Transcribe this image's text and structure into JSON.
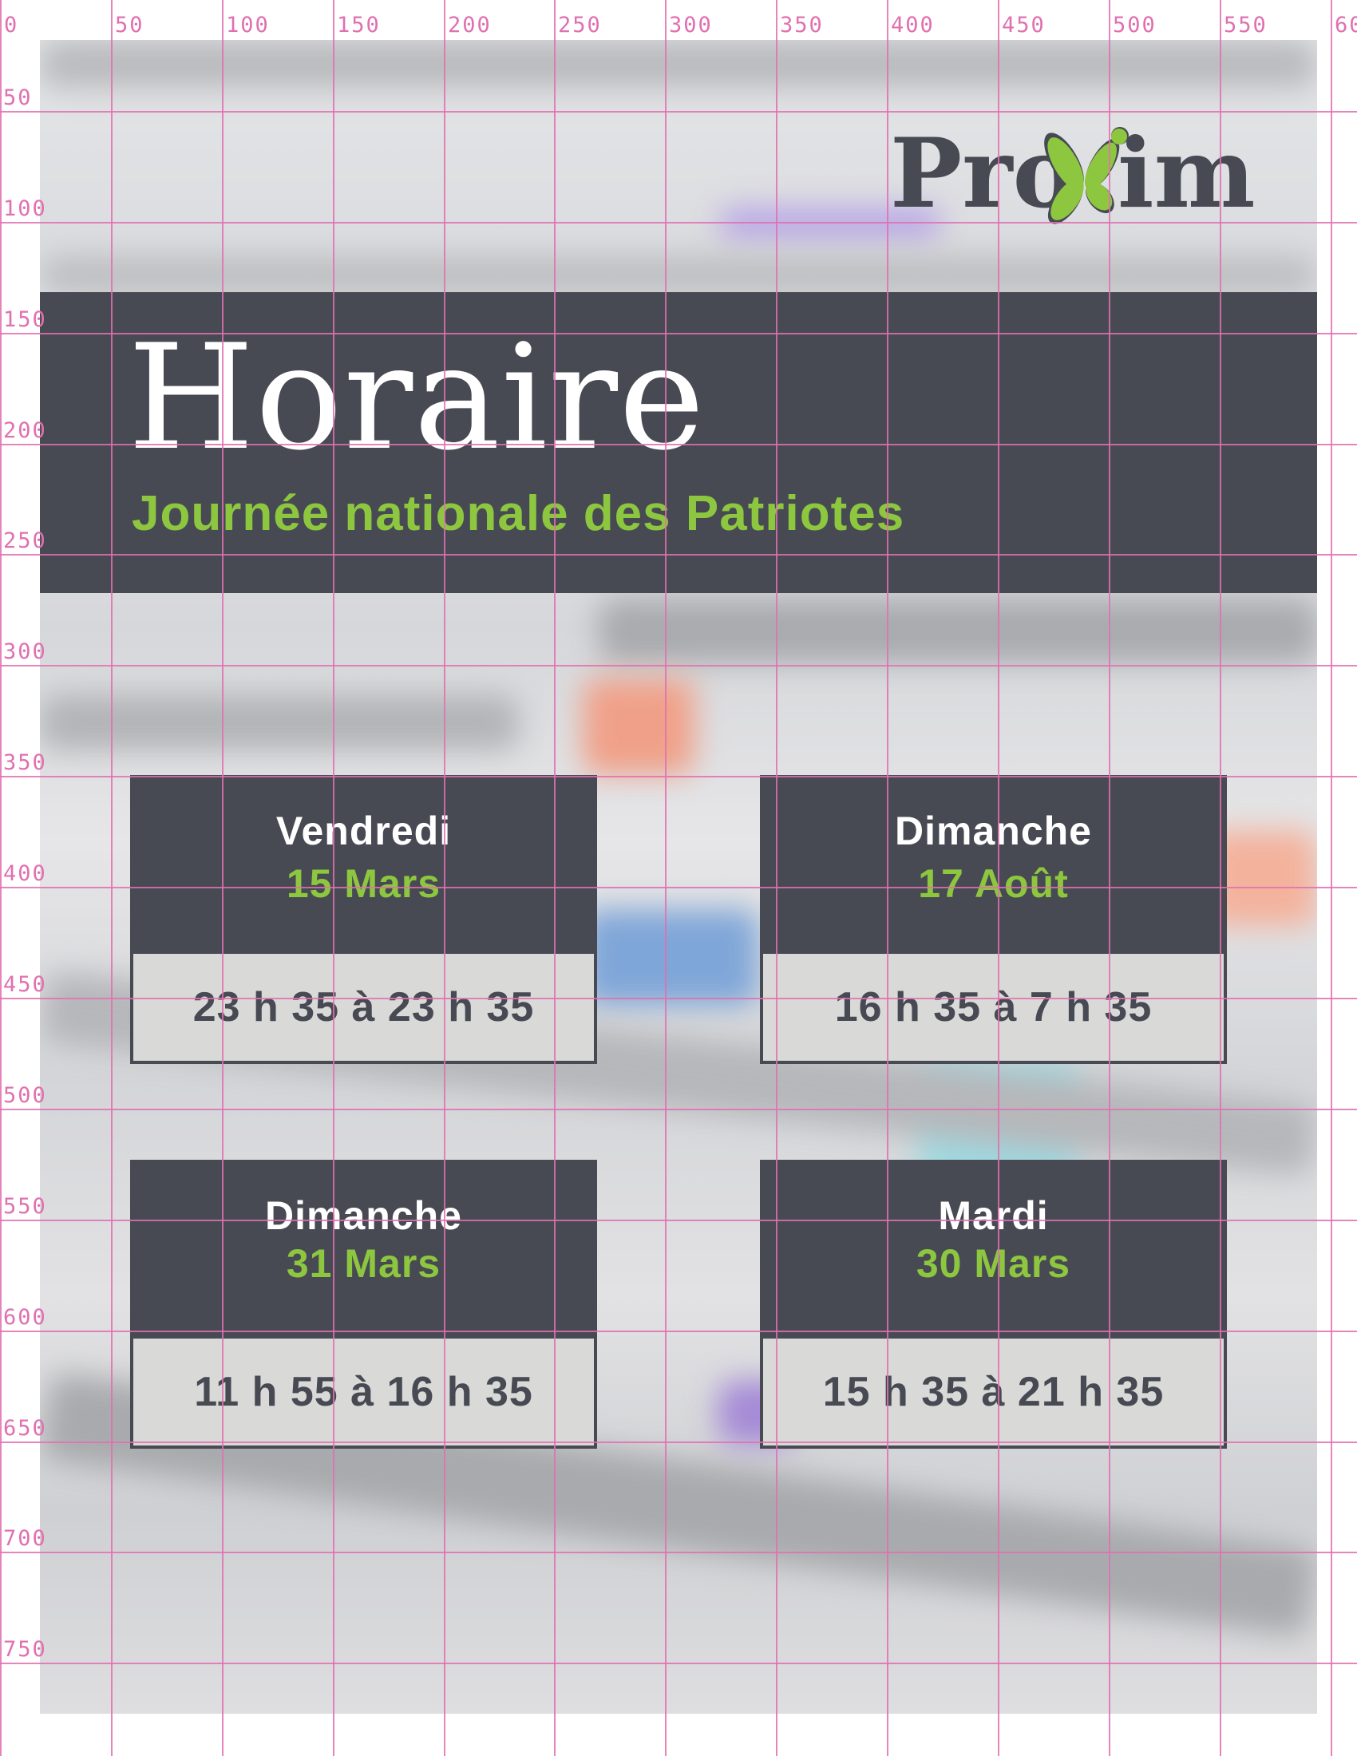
{
  "logo": {
    "text_left": "Pro",
    "text_right": "im",
    "brand_color": "#8dc63f",
    "dark_color": "#474a53"
  },
  "header": {
    "title": "Horaire",
    "subtitle": "Journée nationale des Patriotes"
  },
  "cards": [
    {
      "day": "Vendredi",
      "date": "15 Mars",
      "time": "23 h 35 à 23 h 35"
    },
    {
      "day": "Dimanche",
      "date": "17 Août",
      "time": "16 h 35 à 7 h 35"
    },
    {
      "day": "Dimanche",
      "date": "31 Mars",
      "time": "11 h 55 à 16 h 35"
    },
    {
      "day": "Mardi",
      "date": "30 Mars",
      "time": "15 h 35 à 21 h 35"
    }
  ],
  "ruler": {
    "top_labels": [
      "0",
      "50",
      "100",
      "150",
      "200",
      "250",
      "300",
      "350",
      "400",
      "450",
      "500",
      "550",
      "60"
    ],
    "left_labels": [
      "50",
      "100",
      "150",
      "200",
      "250",
      "300",
      "350",
      "400",
      "450",
      "500",
      "550",
      "600",
      "650",
      "700",
      "750"
    ],
    "color": "#e070b0"
  },
  "colors": {
    "banner": "#474a53",
    "accent": "#8dc63f",
    "time_box": "#d9d9d7"
  }
}
